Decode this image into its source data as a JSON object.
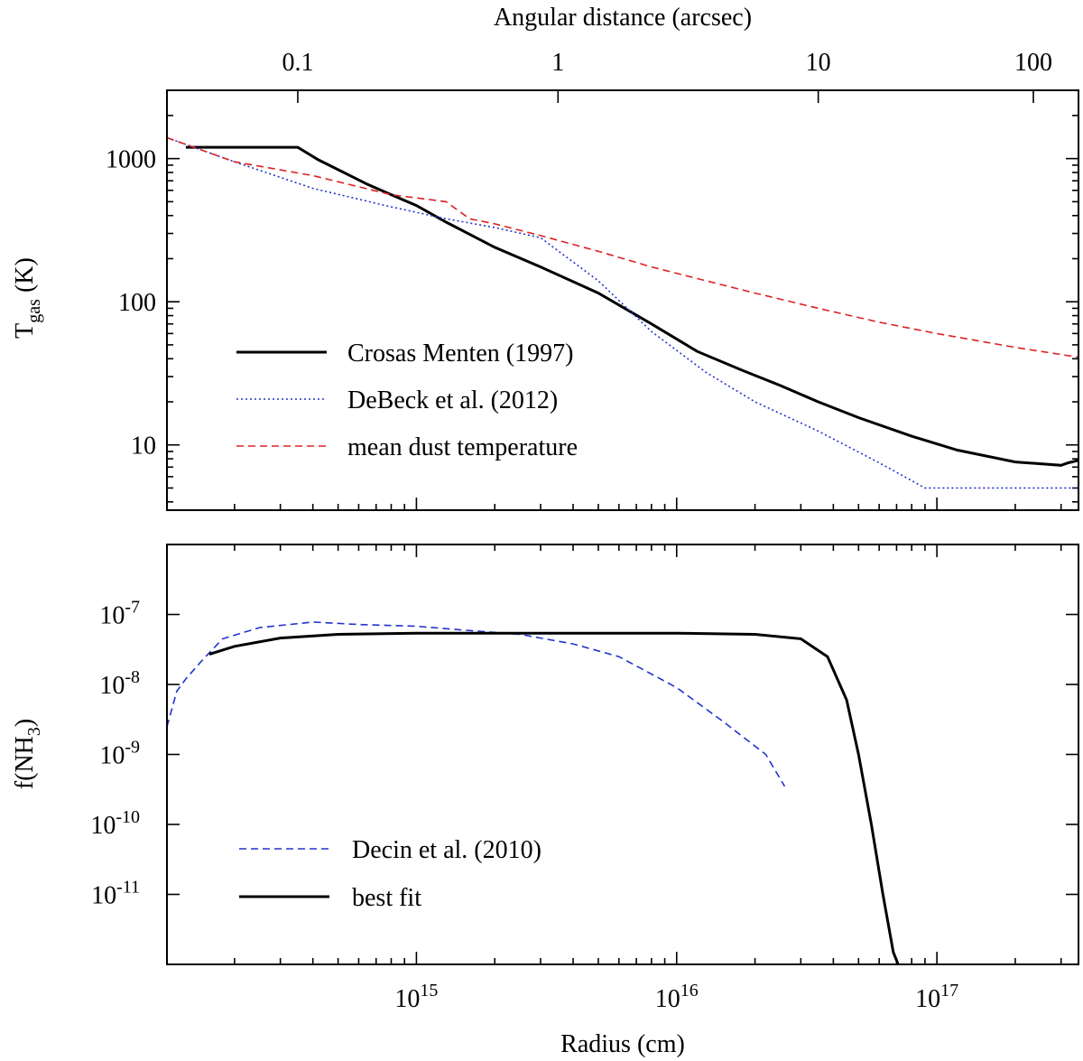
{
  "chart_data": [
    {
      "type": "line",
      "panel": "top",
      "title": "",
      "xscale": "log",
      "yscale": "log",
      "xlabel": "",
      "top_axis_label": "Angular distance (arcsec)",
      "top_axis_ticks": [
        "0.1",
        "1",
        "10",
        "100"
      ],
      "ylabel_main": "T",
      "ylabel_sub": "gas",
      "ylabel_suffix": " (K)",
      "xlim": [
        110000000000000.0,
        3.5e+17
      ],
      "ylim": [
        3.5,
        3000
      ],
      "ytick_labels": [
        "10",
        "100",
        "1000"
      ],
      "legend_position": "lower-left",
      "series": [
        {
          "name": "Crosas  Menten (1997)",
          "color": "#000000",
          "dash": "solid",
          "x": [
            130000000000000.0,
            220000000000000.0,
            300000000000000.0,
            350000000000000.0,
            420000000000000.0,
            650000000000000.0,
            800000000000000.0,
            1000000000000000.0,
            1300000000000000.0,
            2000000000000000.0,
            3000000000000000.0,
            5000000000000000.0,
            8000000000000000.0,
            1.2e+16,
            1.8e+16,
            2.5e+16,
            3.5e+16,
            5e+16,
            8e+16,
            1.2e+17,
            2e+17,
            3e+17,
            3.2e+17,
            3.5e+17
          ],
          "y": [
            1200,
            1200,
            1200,
            1200,
            980,
            660,
            560,
            470,
            360,
            240,
            175,
            115,
            70,
            45,
            33,
            26,
            20,
            15.5,
            11.5,
            9.2,
            7.6,
            7.2,
            7.5,
            7.8
          ]
        },
        {
          "name": "DeBeck et al. (2012)",
          "color": "#2233cc",
          "dash": "dot",
          "x": [
            110000000000000.0,
            200000000000000.0,
            400000000000000.0,
            800000000000000.0,
            1300000000000000.0,
            2000000000000000.0,
            3000000000000000.0,
            5000000000000000.0,
            8000000000000000.0,
            1.3e+16,
            2e+16,
            3.5e+16,
            6e+16,
            9e+16,
            1.3e+17,
            2e+17,
            3.5e+17
          ],
          "y": [
            1400,
            950,
            620,
            460,
            380,
            330,
            280,
            140,
            62,
            32,
            20,
            12.5,
            7.5,
            5.0,
            5.0,
            5.0,
            5.0
          ]
        },
        {
          "name": "mean dust temperature",
          "color": "#dd2222",
          "dash": "dash",
          "x": [
            110000000000000.0,
            200000000000000.0,
            400000000000000.0,
            800000000000000.0,
            1300000000000000.0,
            1600000000000000.0,
            2000000000000000.0,
            3000000000000000.0,
            5000000000000000.0,
            8000000000000000.0,
            1.3e+16,
            2e+16,
            3.5e+16,
            6e+16,
            1e+17,
            2e+17,
            3.5e+17
          ],
          "y": [
            1400,
            950,
            760,
            560,
            500,
            380,
            350,
            290,
            225,
            175,
            140,
            115,
            90,
            72,
            60,
            48,
            41
          ]
        }
      ]
    },
    {
      "type": "line",
      "panel": "bottom",
      "title": "",
      "xscale": "log",
      "yscale": "log",
      "xlabel": "Radius (cm)",
      "ylabel_main": "f(NH",
      "ylabel_sub": "3",
      "ylabel_suffix": ")",
      "xlim": [
        110000000000000.0,
        3.5e+17
      ],
      "ylim": [
        1e-12,
        1e-06
      ],
      "xtick_labels": [
        {
          "base": "10",
          "exp": "15"
        },
        {
          "base": "10",
          "exp": "16"
        },
        {
          "base": "10",
          "exp": "17"
        }
      ],
      "ytick_labels": [
        {
          "base": "10",
          "exp": "-7"
        },
        {
          "base": "10",
          "exp": "-8"
        },
        {
          "base": "10",
          "exp": "-9"
        },
        {
          "base": "10",
          "exp": "-10"
        },
        {
          "base": "10",
          "exp": "-11"
        }
      ],
      "legend_position": "lower-left",
      "series": [
        {
          "name": "Decin et al. (2010)",
          "color": "#2233cc",
          "dash": "dash",
          "x": [
            110000000000000.0,
            120000000000000.0,
            130000000000000.0,
            150000000000000.0,
            180000000000000.0,
            250000000000000.0,
            400000000000000.0,
            600000000000000.0,
            1000000000000000.0,
            1500000000000000.0,
            2500000000000000.0,
            4000000000000000.0,
            6000000000000000.0,
            1e+16,
            1.5e+16,
            2.2e+16,
            2.6e+16
          ],
          "y": [
            2.5e-09,
            8e-09,
            1.2e-08,
            2.2e-08,
            4.5e-08,
            6.5e-08,
            7.8e-08,
            7.2e-08,
            6.8e-08,
            6e-08,
            5.2e-08,
            3.8e-08,
            2.5e-08,
            9e-09,
            3e-09,
            1e-09,
            3.5e-10
          ]
        },
        {
          "name": "best fit",
          "color": "#000000",
          "dash": "solid",
          "x": [
            160000000000000.0,
            200000000000000.0,
            300000000000000.0,
            500000000000000.0,
            1000000000000000.0,
            2000000000000000.0,
            5000000000000000.0,
            1e+16,
            2e+16,
            3e+16,
            3.8e+16,
            4.5e+16,
            5e+16,
            5.6e+16,
            6.2e+16,
            6.8e+16,
            7.1e+16
          ],
          "y": [
            2.7e-08,
            3.5e-08,
            4.6e-08,
            5.2e-08,
            5.4e-08,
            5.4e-08,
            5.4e-08,
            5.4e-08,
            5.2e-08,
            4.5e-08,
            2.5e-08,
            6e-09,
            1e-09,
            1e-10,
            1e-11,
            1.5e-12,
            1e-12
          ]
        }
      ]
    }
  ]
}
